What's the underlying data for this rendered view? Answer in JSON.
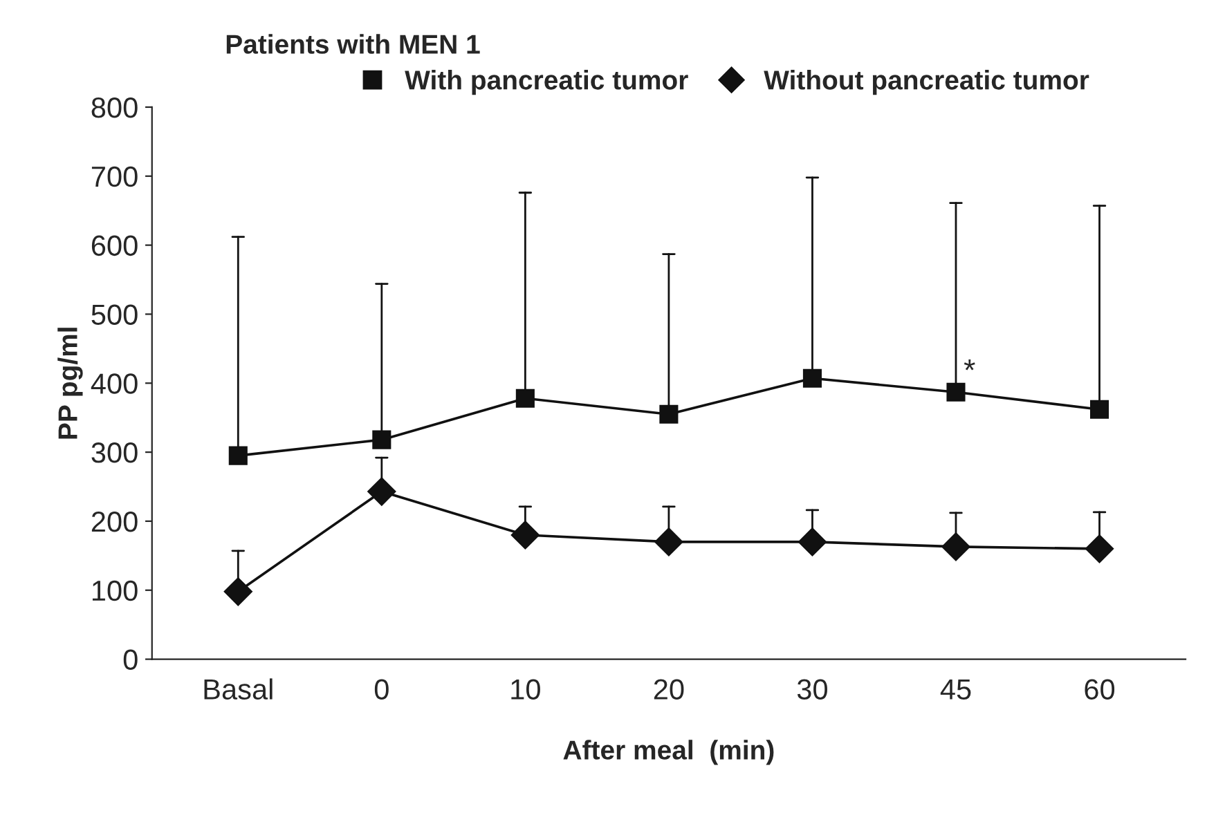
{
  "chart_data": {
    "type": "line",
    "title": "Patients with MEN 1",
    "xlabel": "After meal  (min)",
    "ylabel": "PP pg/ml",
    "categories": [
      "Basal",
      "0",
      "10",
      "20",
      "30",
      "45",
      "60"
    ],
    "series": [
      {
        "name": "With pancreatic tumor",
        "color": "#111111",
        "marker": "square",
        "values": [
          295,
          318,
          378,
          355,
          407,
          387,
          362
        ],
        "errors": [
          [
            295,
            612
          ],
          [
            318,
            544
          ],
          [
            378,
            676
          ],
          [
            355,
            587
          ],
          [
            407,
            698
          ],
          [
            387,
            661
          ],
          [
            362,
            657
          ]
        ]
      },
      {
        "name": "Without pancreatic tumor",
        "color": "#111111",
        "marker": "diamond",
        "values": [
          98,
          243,
          180,
          170,
          170,
          163,
          160
        ],
        "errors": [
          [
            98,
            157
          ],
          [
            243,
            292
          ],
          [
            180,
            221
          ],
          [
            170,
            221
          ],
          [
            170,
            216
          ],
          [
            163,
            212
          ],
          [
            160,
            213
          ]
        ]
      }
    ],
    "annotations": [
      {
        "text": "*",
        "x": "45",
        "y": 387
      }
    ],
    "ylim": [
      0,
      800
    ],
    "yticks": [
      0,
      100,
      200,
      300,
      400,
      500,
      600,
      700,
      800
    ],
    "grid": false,
    "legend": "top"
  }
}
